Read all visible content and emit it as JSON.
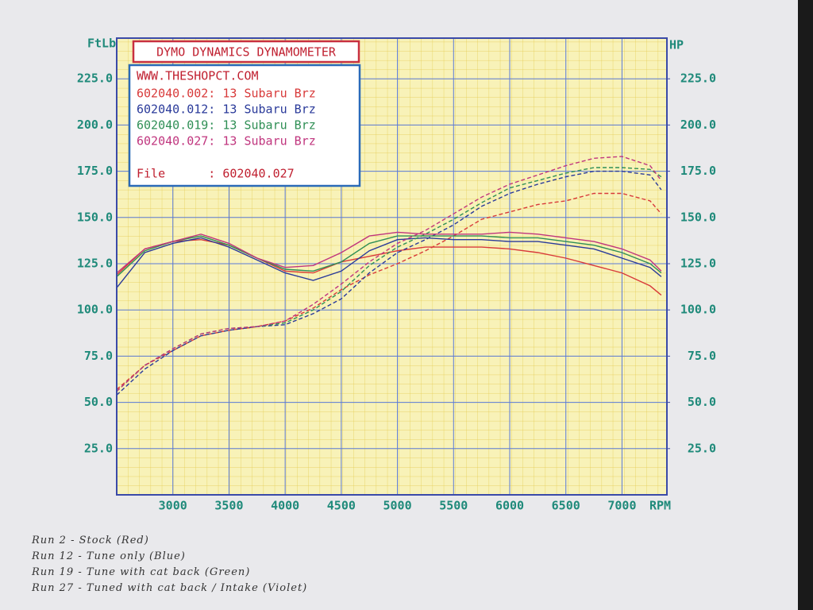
{
  "chart_data": {
    "type": "line",
    "title": "DYMO DYNAMICS DYNAMOMETER",
    "subtitle": "WWW.THESHOPCT.COM",
    "file": "File      : 602040.027",
    "y_label": "FtLb",
    "y2_label": "HP",
    "x_label": "RPM",
    "x": [
      2500,
      2750,
      3000,
      3250,
      3500,
      3750,
      4000,
      4250,
      4500,
      4750,
      5000,
      5250,
      5500,
      5750,
      6000,
      6250,
      6500,
      6750,
      7000,
      7250,
      7350
    ],
    "xlim": [
      2500,
      7400
    ],
    "xticks": [
      3000,
      3500,
      4000,
      4500,
      5000,
      5500,
      6000,
      6500,
      7000
    ],
    "ylim": [
      0,
      247
    ],
    "yticks": [
      {
        "value": 25,
        "label": "25.0"
      },
      {
        "value": 50,
        "label": "50.0"
      },
      {
        "value": 75,
        "label": "75.0"
      },
      {
        "value": 100,
        "label": "100.0"
      },
      {
        "value": 125,
        "label": "125.0"
      },
      {
        "value": 150,
        "label": "150.0"
      },
      {
        "value": 175,
        "label": "175.0"
      },
      {
        "value": 200,
        "label": "200.0"
      },
      {
        "value": 225,
        "label": "225.0"
      }
    ],
    "y2lim": [
      0,
      247
    ],
    "y2ticks": [
      {
        "value": 25,
        "label": "25.0"
      },
      {
        "value": 50,
        "label": "50.0"
      },
      {
        "value": 75,
        "label": "75.0"
      },
      {
        "value": 100,
        "label": "100.0"
      },
      {
        "value": 125,
        "label": "125.0"
      },
      {
        "value": 150,
        "label": "150.0"
      },
      {
        "value": 175,
        "label": "175.0"
      },
      {
        "value": 200,
        "label": "200.0"
      },
      {
        "value": 225,
        "label": "225.0"
      }
    ],
    "grid": true,
    "series": [
      {
        "name": "602040.002: 13 Subaru Brz",
        "color": "#d83a3a",
        "values": [
          119,
          133,
          137,
          138,
          135,
          128,
          121,
          120,
          126,
          129,
          132,
          134,
          134,
          134,
          133,
          131,
          128,
          124,
          120,
          113,
          108
        ],
        "hp": [
          57,
          70,
          78,
          86,
          89,
          91,
          94,
          101,
          111,
          119,
          125,
          132,
          140,
          149,
          153,
          157,
          159,
          163,
          163,
          159,
          152
        ]
      },
      {
        "name": "602040.012: 13 Subaru Brz",
        "color": "#2a3a9a",
        "values": [
          112,
          131,
          136,
          139,
          134,
          127,
          120,
          116,
          121,
          132,
          138,
          139,
          138,
          138,
          137,
          137,
          135,
          133,
          128,
          123,
          118
        ],
        "hp": [
          54,
          68,
          78,
          86,
          89,
          91,
          92,
          98,
          106,
          120,
          131,
          138,
          146,
          156,
          163,
          168,
          172,
          175,
          175,
          173,
          165
        ]
      },
      {
        "name": "602040.019: 13 Subaru Brz",
        "color": "#2f8f55",
        "values": [
          118,
          132,
          137,
          140,
          135,
          128,
          122,
          121,
          126,
          136,
          140,
          140,
          140,
          140,
          139,
          139,
          137,
          135,
          131,
          125,
          120
        ],
        "hp": [
          56,
          70,
          79,
          87,
          90,
          91,
          93,
          100,
          110,
          124,
          134,
          141,
          149,
          158,
          166,
          170,
          174,
          177,
          177,
          176,
          172
        ]
      },
      {
        "name": "602040.027: 13 Subaru Brz",
        "color": "#c0357e",
        "values": [
          120,
          133,
          137,
          141,
          136,
          128,
          123,
          124,
          131,
          140,
          142,
          141,
          141,
          141,
          142,
          141,
          139,
          137,
          133,
          127,
          121
        ],
        "hp": [
          56,
          70,
          79,
          87,
          90,
          91,
          94,
          103,
          114,
          126,
          136,
          143,
          152,
          161,
          168,
          173,
          178,
          182,
          183,
          178,
          170
        ]
      }
    ],
    "notes": [
      "Run 2 - Stock (Red)",
      "Run 12 - Tune only (Blue)",
      "Run 19 - Tune with cat back (Green)",
      "Run 27 - Tuned with cat back / Intake (Violet)"
    ]
  }
}
